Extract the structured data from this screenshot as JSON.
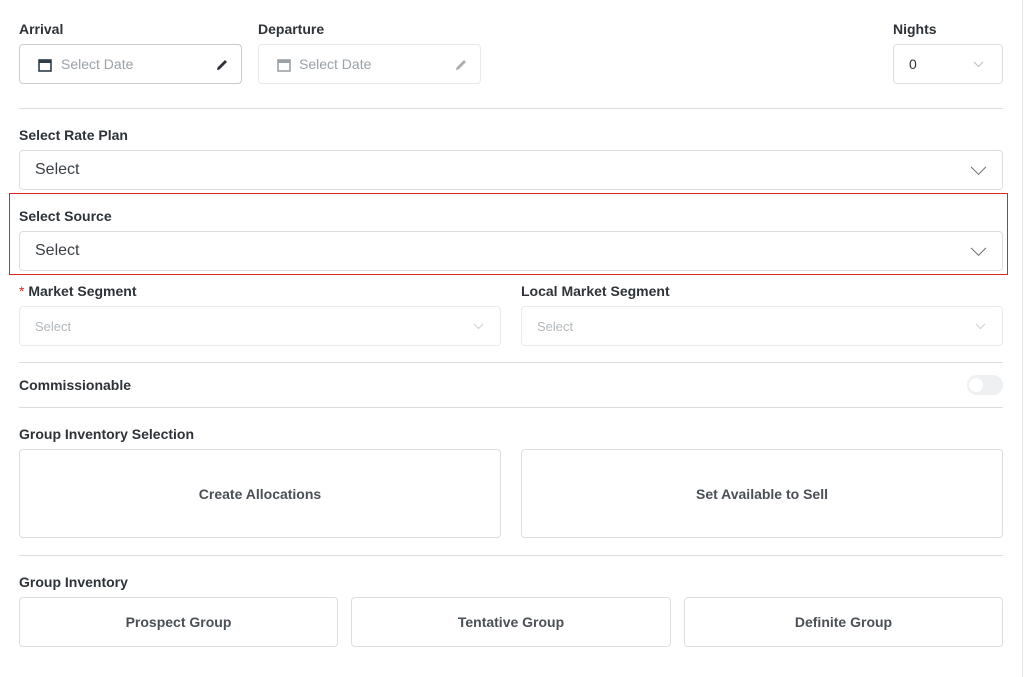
{
  "arrival": {
    "label": "Arrival",
    "placeholder": "Select Date"
  },
  "departure": {
    "label": "Departure",
    "placeholder": "Select Date"
  },
  "nights": {
    "label": "Nights",
    "value": "0"
  },
  "rate_plan": {
    "label": "Select Rate Plan",
    "value": "Select"
  },
  "source": {
    "label": "Select Source",
    "value": "Select",
    "highlight_color": "#e02424"
  },
  "market_segment": {
    "label": "Market Segment",
    "required_mark": "*",
    "value": "Select"
  },
  "local_market_segment": {
    "label": "Local Market Segment",
    "value": "Select"
  },
  "commissionable": {
    "label": "Commissionable",
    "enabled": false
  },
  "inventory_selection": {
    "label": "Group Inventory Selection",
    "buttons": [
      "Create Allocations",
      "Set Available to Sell"
    ]
  },
  "inventory": {
    "label": "Group Inventory",
    "buttons": [
      "Prospect Group",
      "Tentative Group",
      "Definite Group"
    ]
  }
}
